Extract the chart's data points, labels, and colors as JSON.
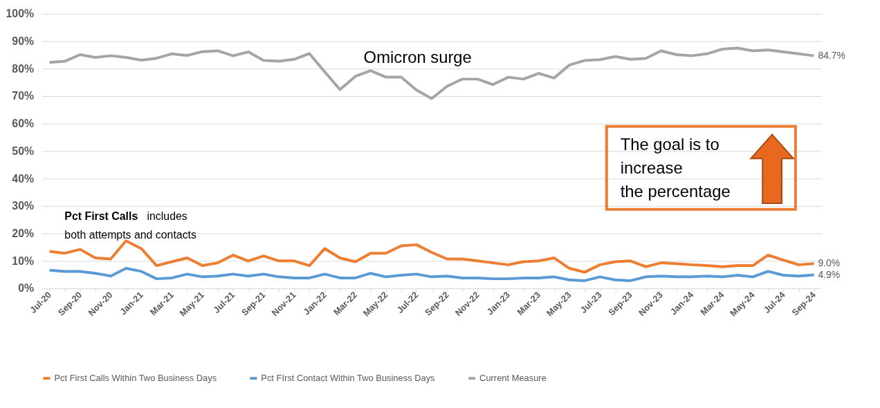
{
  "chart_data": {
    "type": "line",
    "categories": [
      "Jul-20",
      null,
      "Sep-20",
      null,
      "Nov-20",
      null,
      "Jan-21",
      null,
      "Mar-21",
      null,
      "May-21",
      null,
      "Jul-21",
      null,
      "Sep-21",
      null,
      "Nov-21",
      null,
      "Jan-22",
      null,
      "Mar-22",
      null,
      "May-22",
      null,
      "Jul-22",
      null,
      "Sep-22",
      null,
      "Nov-22",
      null,
      "Jan-23",
      null,
      "Mar-23",
      null,
      "May-23",
      null,
      "Jul-23",
      null,
      "Sep-23",
      null,
      "Nov-23",
      null,
      "Jan-24",
      null,
      "Mar-24",
      null,
      "May-24",
      null,
      "Jul-24",
      null,
      "Sep-24"
    ],
    "series": [
      {
        "name": "Pct First Calls Within Two Business Days",
        "color": "#ed7d31",
        "values": [
          13.5,
          12.8,
          14.2,
          11.1,
          10.7,
          17.3,
          14.5,
          8.3,
          9.7,
          11.1,
          8.3,
          9.3,
          12.1,
          10.0,
          11.8,
          10.0,
          10.0,
          8.3,
          14.5,
          11.1,
          9.7,
          12.8,
          12.8,
          15.5,
          15.9,
          13.1,
          10.7,
          10.7,
          10.0,
          9.3,
          8.6,
          9.7,
          10.0,
          11.1,
          7.3,
          5.9,
          8.6,
          9.7,
          10.0,
          7.9,
          9.3,
          9.0,
          8.6,
          8.3,
          7.9,
          8.3,
          8.3,
          12.1,
          10.3,
          8.6,
          9.0
        ],
        "value_labels": [
          null,
          null,
          null,
          null,
          null,
          null,
          null,
          null,
          null,
          null,
          null,
          null,
          null,
          null,
          null,
          null,
          null,
          null,
          null,
          null,
          null,
          null,
          null,
          null,
          null,
          null,
          null,
          null,
          null,
          null,
          null,
          null,
          null,
          null,
          null,
          null,
          null,
          null,
          null,
          null,
          null,
          null,
          null,
          null,
          null,
          null,
          null,
          null,
          null,
          null,
          "9.0%"
        ]
      },
      {
        "name": "Pct FIrst Contact Within Two Business Days",
        "color": "#5b9bd5",
        "values": [
          6.6,
          6.2,
          6.2,
          5.5,
          4.5,
          7.3,
          6.2,
          3.5,
          3.8,
          5.2,
          4.2,
          4.5,
          5.2,
          4.5,
          5.2,
          4.2,
          3.8,
          3.8,
          5.2,
          3.8,
          3.8,
          5.5,
          4.2,
          4.8,
          5.2,
          4.2,
          4.5,
          3.8,
          3.8,
          3.5,
          3.5,
          3.8,
          3.8,
          4.2,
          3.1,
          2.8,
          4.2,
          3.1,
          2.8,
          4.2,
          4.5,
          4.2,
          4.2,
          4.5,
          4.2,
          4.8,
          4.2,
          6.2,
          4.8,
          4.5,
          4.9
        ],
        "value_labels": [
          null,
          null,
          null,
          null,
          null,
          null,
          null,
          null,
          null,
          null,
          null,
          null,
          null,
          null,
          null,
          null,
          null,
          null,
          null,
          null,
          null,
          null,
          null,
          null,
          null,
          null,
          null,
          null,
          null,
          null,
          null,
          null,
          null,
          null,
          null,
          null,
          null,
          null,
          null,
          null,
          null,
          null,
          null,
          null,
          null,
          null,
          null,
          null,
          null,
          null,
          "4.9%"
        ]
      },
      {
        "name": "Current Measure",
        "color": "#a5a5a5",
        "values": [
          82.3,
          82.7,
          85.1,
          84.1,
          84.7,
          84.1,
          83.1,
          83.8,
          85.4,
          84.8,
          86.2,
          86.5,
          84.7,
          86.1,
          83.0,
          82.7,
          83.4,
          85.5,
          78.8,
          72.4,
          77.2,
          79.3,
          76.9,
          76.9,
          72.2,
          69.1,
          73.6,
          76.2,
          76.2,
          74.2,
          76.9,
          76.2,
          78.3,
          76.6,
          81.3,
          83.0,
          83.3,
          84.4,
          83.4,
          83.7,
          86.5,
          85.1,
          84.7,
          85.4,
          87.1,
          87.5,
          86.5,
          86.8,
          86.1,
          85.4,
          84.7
        ],
        "value_labels": [
          null,
          null,
          null,
          null,
          null,
          null,
          null,
          null,
          null,
          null,
          null,
          null,
          null,
          null,
          null,
          null,
          null,
          null,
          null,
          null,
          null,
          null,
          null,
          null,
          null,
          null,
          null,
          null,
          null,
          null,
          null,
          null,
          null,
          null,
          null,
          null,
          null,
          null,
          null,
          null,
          null,
          null,
          null,
          null,
          null,
          null,
          null,
          null,
          null,
          null,
          "84.7%"
        ]
      }
    ],
    "ylim": [
      0,
      100
    ],
    "yticks": [
      {
        "value": 0,
        "label": "0%"
      },
      {
        "value": 10,
        "label": "10%"
      },
      {
        "value": 20,
        "label": "20%"
      },
      {
        "value": 30,
        "label": "30%"
      },
      {
        "value": 40,
        "label": "40%"
      },
      {
        "value": 50,
        "label": "50%"
      },
      {
        "value": 60,
        "label": "60%"
      },
      {
        "value": 70,
        "label": "70%"
      },
      {
        "value": 80,
        "label": "80%"
      },
      {
        "value": 90,
        "label": "90%"
      },
      {
        "value": 100,
        "label": "100%"
      }
    ],
    "grid": "y",
    "legend": "bottom",
    "marker": "none",
    "line_style": "solid",
    "annotations": [
      "Omicron surge",
      "Pct First Calls",
      "includes",
      "both attempts and contacts",
      "The goal is to\nincrease\nthe percentage"
    ]
  }
}
